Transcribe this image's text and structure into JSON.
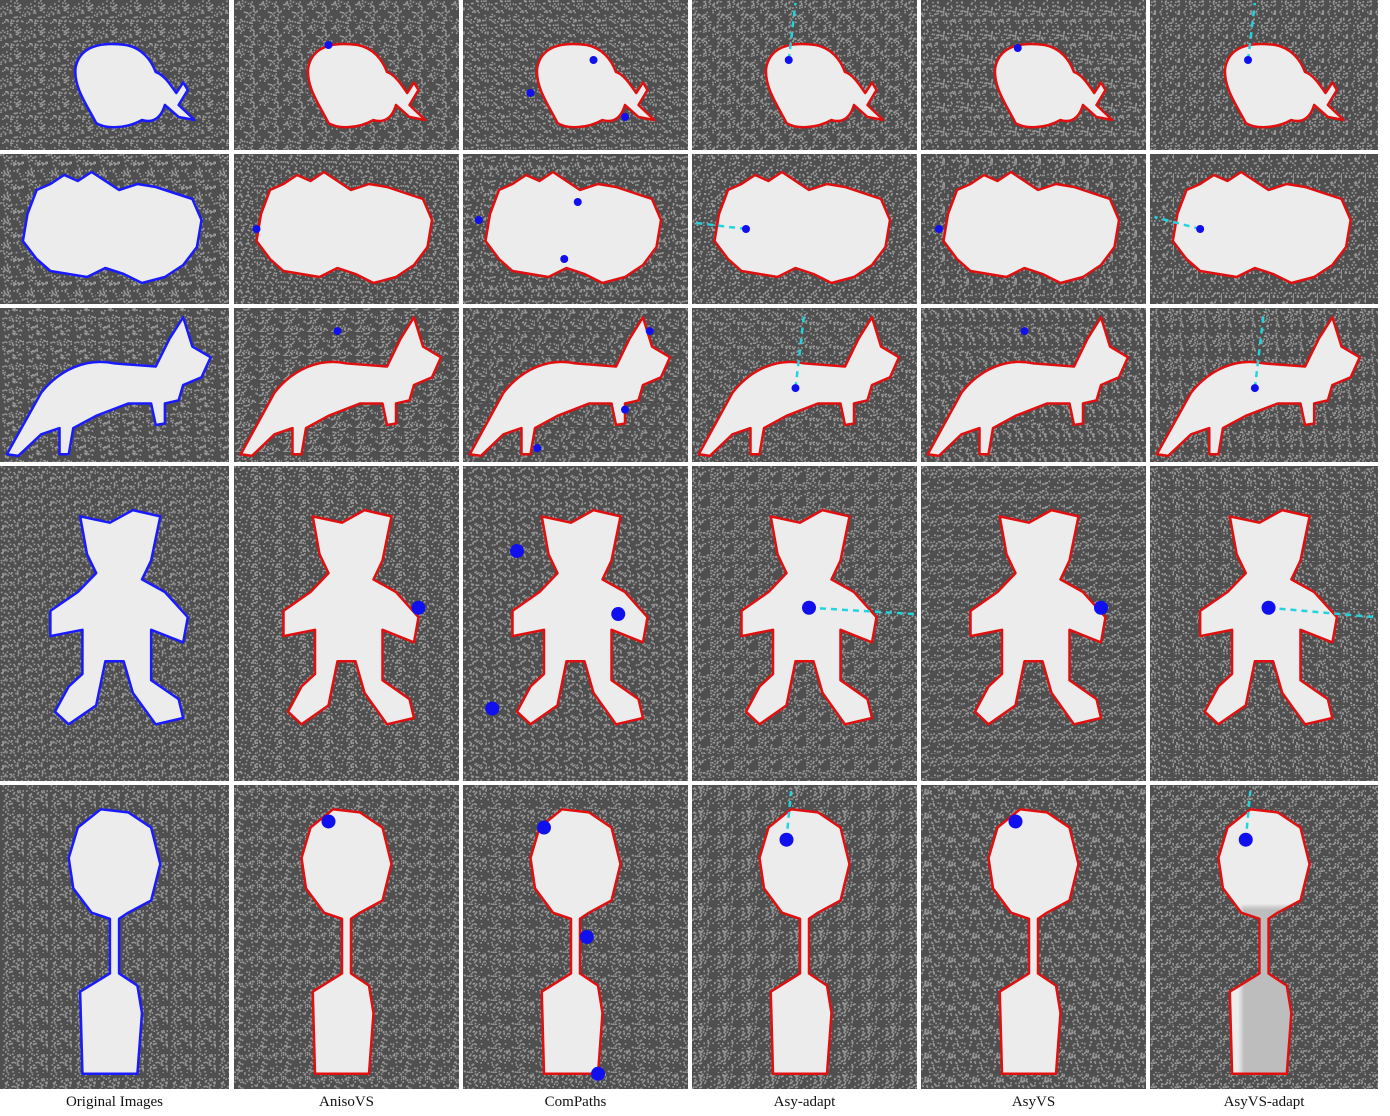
{
  "figure": {
    "columns": [
      {
        "id": "original",
        "caption": "Original Images",
        "kind": "ground_truth"
      },
      {
        "id": "anisovs",
        "caption": "AnisoVS",
        "kind": "point_seeds"
      },
      {
        "id": "compaths",
        "caption": "ComPaths",
        "kind": "point_seeds"
      },
      {
        "id": "asy-adapt",
        "caption": "Asy-adapt",
        "kind": "seed_with_dashed_cut"
      },
      {
        "id": "asyvs",
        "caption": "AsyVS",
        "kind": "point_seeds"
      },
      {
        "id": "asyvs-adapt",
        "caption": "AsyVS-adapt",
        "kind": "seed_with_dashed_cut"
      }
    ],
    "rows": [
      {
        "shape": "fish"
      },
      {
        "shape": "peanut-cloud"
      },
      {
        "shape": "kangaroo"
      },
      {
        "shape": "teddy-bear"
      },
      {
        "shape": "potted-tree"
      }
    ],
    "colors": {
      "background_noise": "#5a5a5a",
      "foreground_region": "#e6e6e6",
      "ground_truth_contour": "#1a1aff",
      "result_contour": "#e01010",
      "seed_point": "#1010ee",
      "dashed_cut": "#22d4e0",
      "separator": "#ffffff"
    }
  }
}
